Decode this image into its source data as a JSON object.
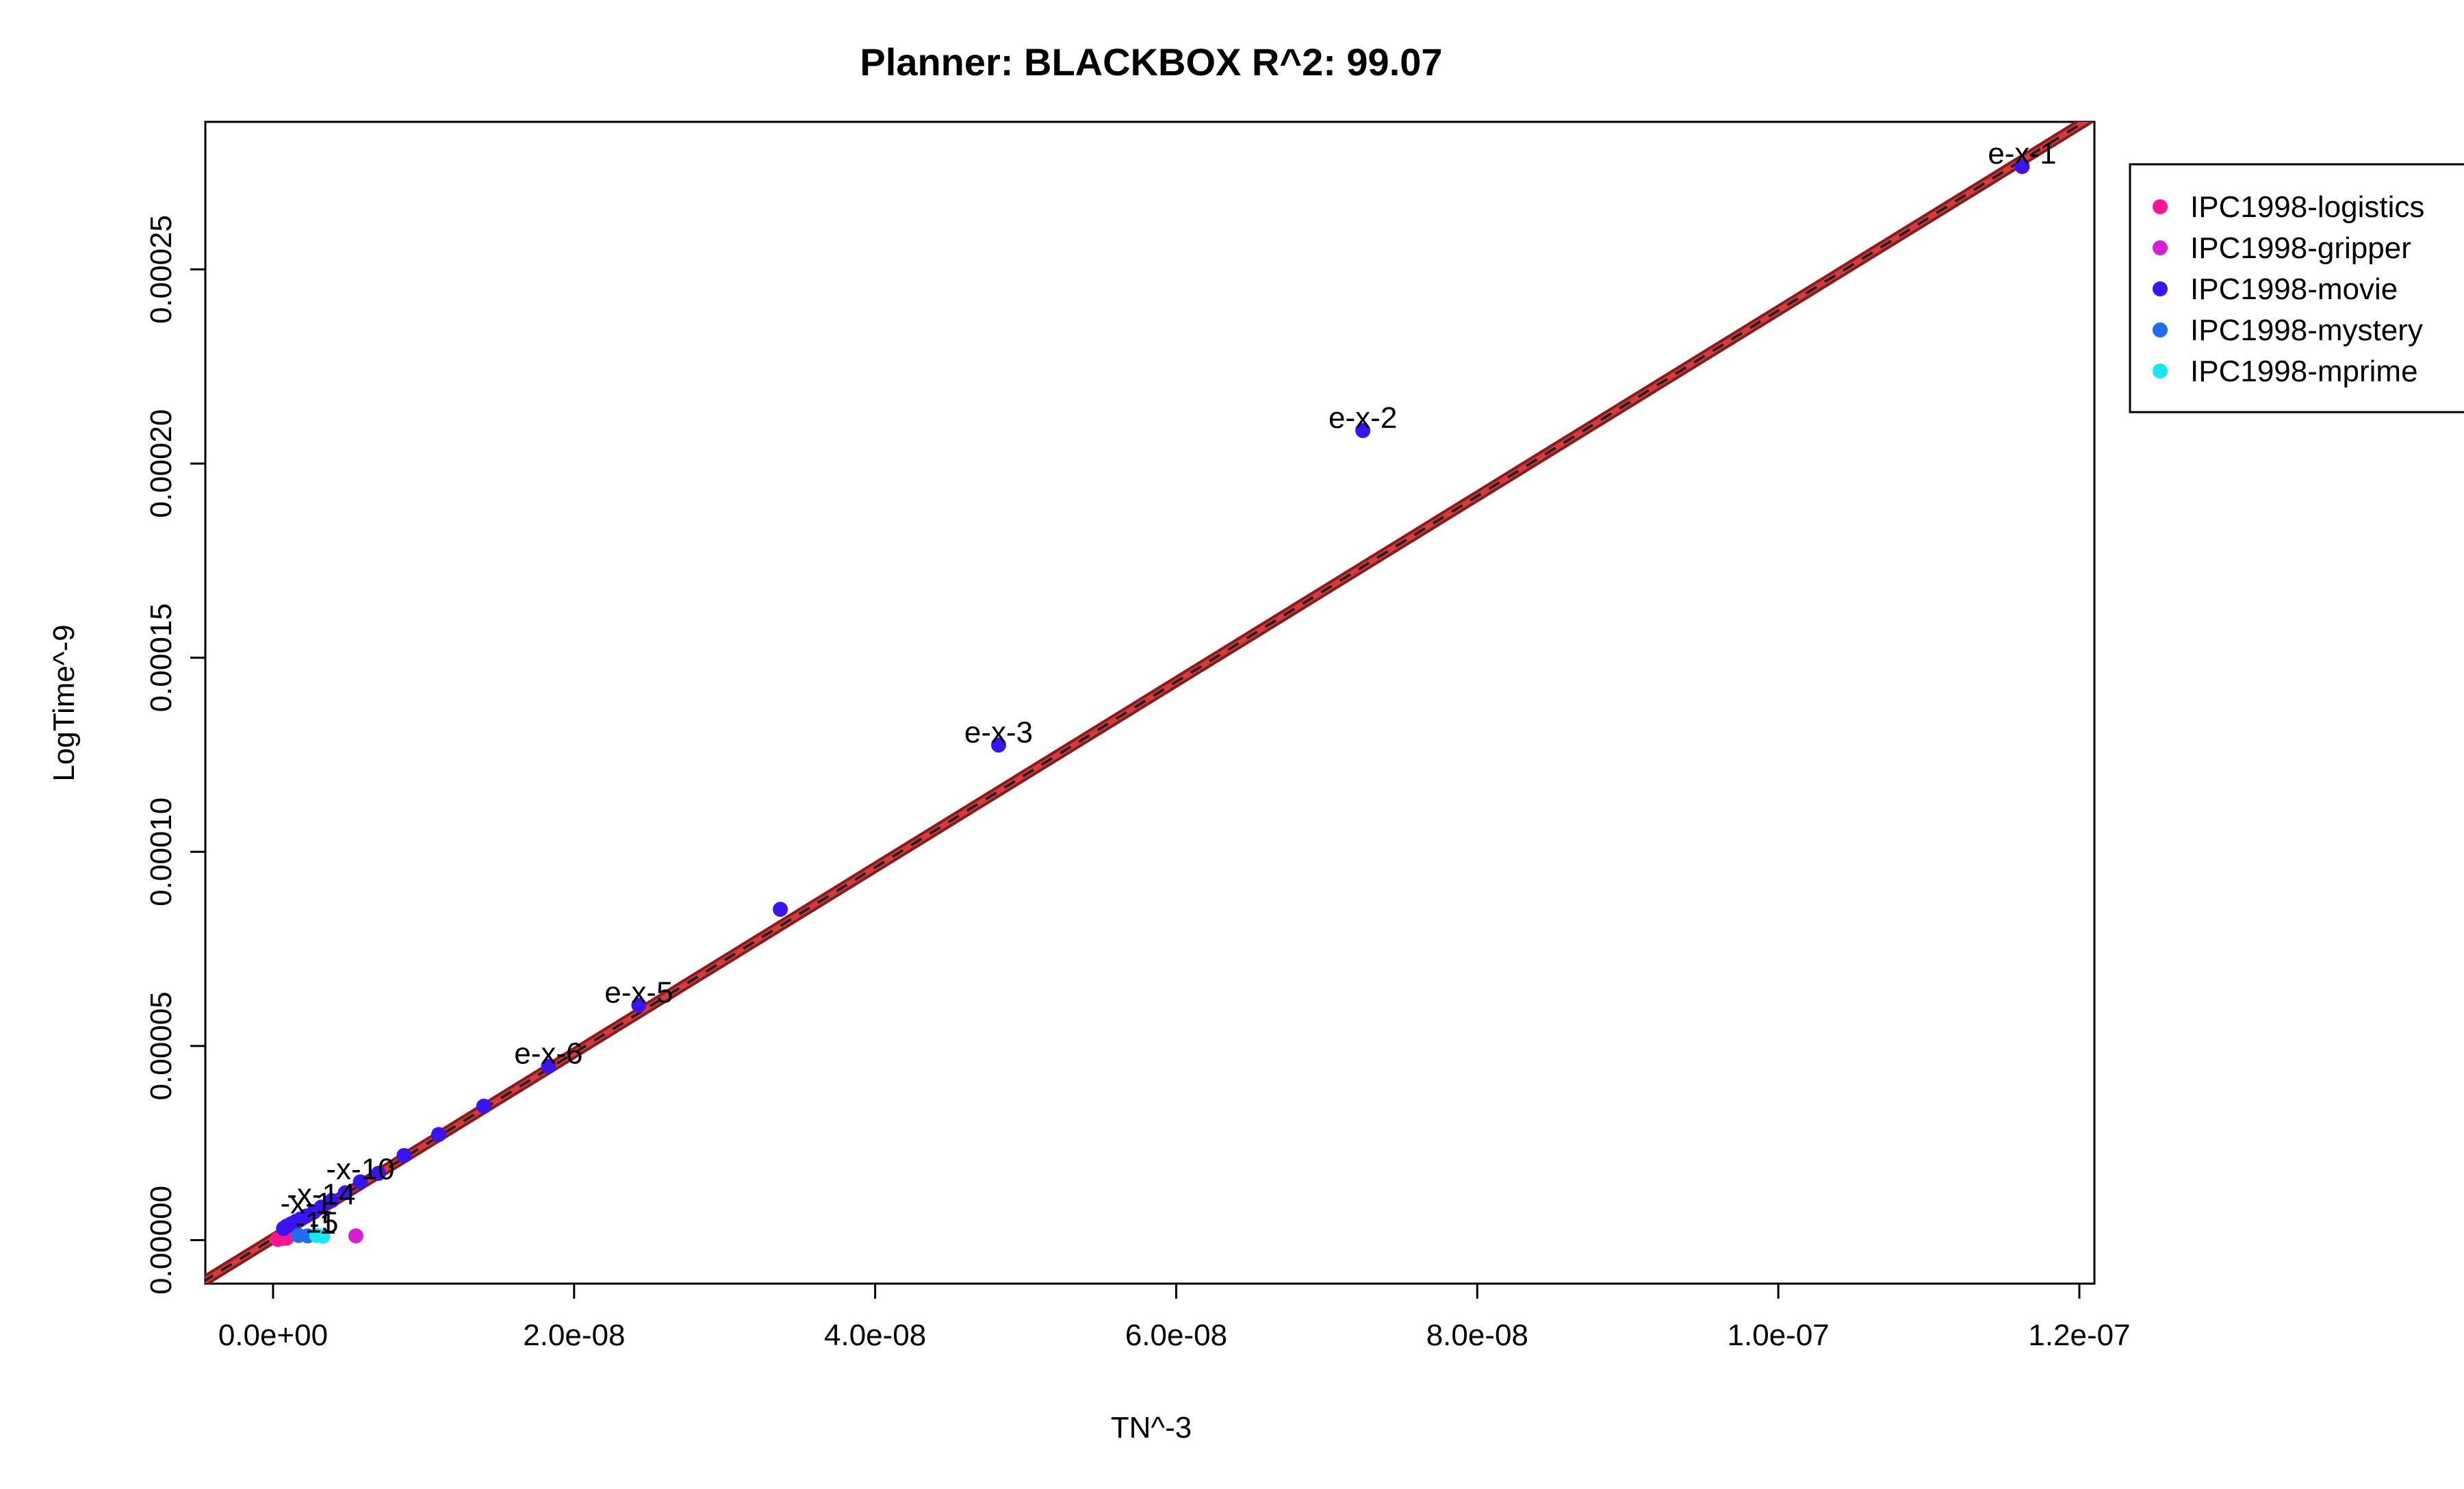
{
  "chart_data": {
    "type": "scatter",
    "title": "Planner: BLACKBOX R^2: 99.07",
    "xlabel": "TN^-3",
    "ylabel": "LogTime^-9",
    "xlim": [
      -4.5e-09,
      1.21e-07
    ],
    "ylim": [
      -1.12e-05,
      0.000288
    ],
    "x_ticks": [
      0,
      2e-08,
      4e-08,
      6e-08,
      8e-08,
      1e-07,
      1.2e-07
    ],
    "x_tick_labels": [
      "0.0e+00",
      "2.0e-08",
      "4.0e-08",
      "6.0e-08",
      "8.0e-08",
      "1.0e-07",
      "1.2e-07"
    ],
    "y_ticks": [
      0,
      5e-05,
      0.0001,
      0.00015,
      0.0002,
      0.00025
    ],
    "y_tick_labels": [
      "0.00000",
      "0.00005",
      "0.00010",
      "0.00015",
      "0.00020",
      "0.00025"
    ],
    "grid": false,
    "legend_position": "right-outside",
    "fit_line": {
      "color_outer": "#8b1a1a",
      "color_inner": "#d23c3c",
      "dash_color": "#222222",
      "slope": 2390,
      "intercept": 4e-07
    },
    "series": [
      {
        "name": "IPC1998-logistics",
        "color": "#ff1493",
        "points": [
          {
            "x": 3e-10,
            "y": 2e-07
          },
          {
            "x": 6e-10,
            "y": 4e-07
          },
          {
            "x": 9e-10,
            "y": 5e-07
          }
        ]
      },
      {
        "name": "IPC1998-gripper",
        "color": "#d61fd6",
        "points": [
          {
            "x": 5.5e-09,
            "y": 1.1e-06
          }
        ]
      },
      {
        "name": "IPC1998-movie",
        "color": "#3b14f5",
        "points": [
          {
            "x": 1.162e-07,
            "y": 0.0002765,
            "label": "e-x-1"
          },
          {
            "x": 7.24e-08,
            "y": 0.0002085,
            "label": "e-x-2"
          },
          {
            "x": 4.82e-08,
            "y": 0.0001275,
            "label": "e-x-3"
          },
          {
            "x": 3.37e-08,
            "y": 8.52e-05
          },
          {
            "x": 2.43e-08,
            "y": 6.05e-05,
            "label": "e-x-5"
          },
          {
            "x": 1.83e-08,
            "y": 4.48e-05,
            "label": "e-x-6"
          },
          {
            "x": 1.4e-08,
            "y": 3.45e-05
          },
          {
            "x": 1.1e-08,
            "y": 2.72e-05
          },
          {
            "x": 8.7e-09,
            "y": 2.18e-05
          },
          {
            "x": 7e-09,
            "y": 1.72e-05
          },
          {
            "x": 5.8e-09,
            "y": 1.5e-05,
            "label": "-x-10"
          },
          {
            "x": 4.8e-09,
            "y": 1.22e-05
          },
          {
            "x": 3.9e-09,
            "y": 1.02e-05
          },
          {
            "x": 3.2e-09,
            "y": 8.5e-06,
            "label": "-x-14"
          },
          {
            "x": 2.7e-09,
            "y": 7.2e-06
          },
          {
            "x": 2.2e-09,
            "y": 6.2e-06,
            "label": "-x-1"
          },
          {
            "x": 1.8e-09,
            "y": 5.4e-06
          },
          {
            "x": 1.5e-09,
            "y": 4.8e-06
          },
          {
            "x": 1.2e-09,
            "y": 4.2e-06
          },
          {
            "x": 9e-10,
            "y": 3.6e-06
          },
          {
            "x": 7e-10,
            "y": 3e-06
          }
        ]
      },
      {
        "name": "IPC1998-mystery",
        "color": "#1e6ff0",
        "points": [
          {
            "x": 1.7e-09,
            "y": 1.2e-06
          },
          {
            "x": 2.3e-09,
            "y": 1.1e-06
          }
        ]
      },
      {
        "name": "IPC1998-mprime",
        "color": "#19e6f0",
        "points": [
          {
            "x": 2.9e-09,
            "y": 1.2e-06,
            "label": "-15"
          },
          {
            "x": 3.3e-09,
            "y": 1e-06,
            "label": "-1"
          }
        ]
      }
    ]
  }
}
